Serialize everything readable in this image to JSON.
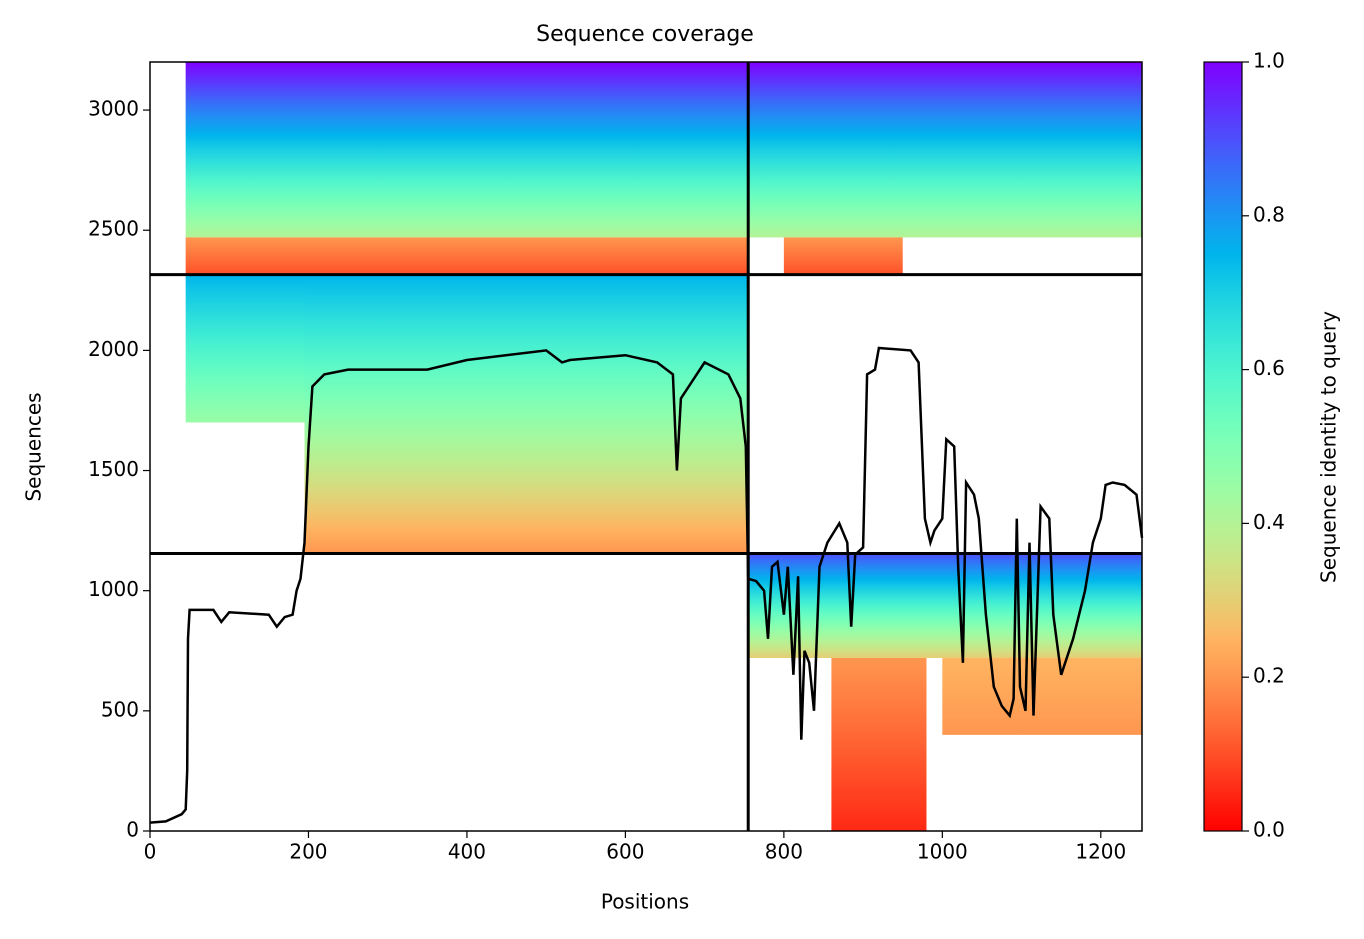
{
  "chart_data": {
    "type": "coverage",
    "title": "Sequence coverage",
    "xlabel": "Positions",
    "ylabel": "Sequences",
    "xlim": [
      0,
      1252
    ],
    "ylim": [
      0,
      3200
    ],
    "xticks": [
      0,
      200,
      400,
      600,
      800,
      1000,
      1200
    ],
    "yticks": [
      0,
      500,
      1000,
      1500,
      2000,
      2500,
      3000
    ],
    "dividers_x": [
      755
    ],
    "dividers_y": [
      1155,
      2315
    ],
    "blocks": [
      {
        "x": [
          45,
          755
        ],
        "y": [
          2470,
          3200
        ],
        "identity": [
          0.4,
          1.0
        ]
      },
      {
        "x": [
          45,
          755
        ],
        "y": [
          2315,
          2470
        ],
        "identity": [
          0.1,
          0.2
        ]
      },
      {
        "x": [
          195,
          755
        ],
        "y": [
          1155,
          2315
        ],
        "identity": [
          0.2,
          0.75
        ]
      },
      {
        "x": [
          45,
          195
        ],
        "y": [
          1700,
          2315
        ],
        "identity": [
          0.45,
          0.75
        ]
      },
      {
        "x": [
          755,
          1252
        ],
        "y": [
          2470,
          3200
        ],
        "identity": [
          0.4,
          1.0
        ]
      },
      {
        "x": [
          800,
          950
        ],
        "y": [
          2315,
          2470
        ],
        "identity": [
          0.1,
          0.2
        ]
      },
      {
        "x": [
          755,
          1252
        ],
        "y": [
          720,
          1155
        ],
        "identity": [
          0.3,
          0.9
        ]
      },
      {
        "x": [
          860,
          980
        ],
        "y": [
          0,
          720
        ],
        "identity": [
          0.05,
          0.2
        ]
      },
      {
        "x": [
          1000,
          1252
        ],
        "y": [
          400,
          720
        ],
        "identity": [
          0.2,
          0.25
        ]
      }
    ],
    "coverage": {
      "color": "#000000",
      "x": [
        0,
        20,
        40,
        45,
        47,
        48,
        50,
        80,
        90,
        100,
        150,
        160,
        170,
        180,
        185,
        190,
        195,
        200,
        205,
        220,
        250,
        350,
        400,
        500,
        520,
        530,
        600,
        640,
        660,
        665,
        670,
        680,
        700,
        730,
        745,
        752,
        755,
        765,
        775,
        780,
        785,
        792,
        800,
        805,
        812,
        818,
        822,
        826,
        832,
        838,
        845,
        855,
        870,
        880,
        885,
        890,
        900,
        905,
        915,
        920,
        960,
        970,
        978,
        985,
        990,
        1000,
        1005,
        1015,
        1020,
        1026,
        1030,
        1040,
        1046,
        1055,
        1065,
        1075,
        1085,
        1090,
        1094,
        1098,
        1105,
        1110,
        1115,
        1124,
        1135,
        1140,
        1150,
        1165,
        1180,
        1190,
        1200,
        1206,
        1215,
        1230,
        1245,
        1252
      ],
      "values": [
        35,
        40,
        70,
        90,
        250,
        800,
        920,
        920,
        870,
        910,
        900,
        850,
        890,
        900,
        1000,
        1050,
        1200,
        1600,
        1850,
        1900,
        1920,
        1920,
        1960,
        2000,
        1950,
        1960,
        1980,
        1950,
        1900,
        1500,
        1800,
        1850,
        1950,
        1900,
        1800,
        1600,
        1050,
        1040,
        1000,
        800,
        1100,
        1120,
        900,
        1100,
        650,
        1060,
        380,
        750,
        700,
        500,
        1100,
        1200,
        1280,
        1200,
        850,
        1150,
        1180,
        1900,
        1920,
        2010,
        2000,
        1950,
        1300,
        1200,
        1250,
        1300,
        1630,
        1600,
        1100,
        700,
        1450,
        1400,
        1300,
        900,
        600,
        520,
        480,
        550,
        1300,
        600,
        500,
        1200,
        480,
        1350,
        1300,
        900,
        650,
        800,
        1000,
        1200,
        1300,
        1440,
        1450,
        1440,
        1400,
        1220
      ]
    },
    "colorbar": {
      "label": "Sequence identity to query",
      "lim": [
        0,
        1
      ],
      "ticks": [
        {
          "value": 0,
          "label": "0.0"
        },
        {
          "value": 0.2,
          "label": "0.2"
        },
        {
          "value": 0.4,
          "label": "0.4"
        },
        {
          "value": 0.6,
          "label": "0.6"
        },
        {
          "value": 0.8,
          "label": "0.8"
        },
        {
          "value": 1,
          "label": "1.0"
        }
      ]
    }
  }
}
